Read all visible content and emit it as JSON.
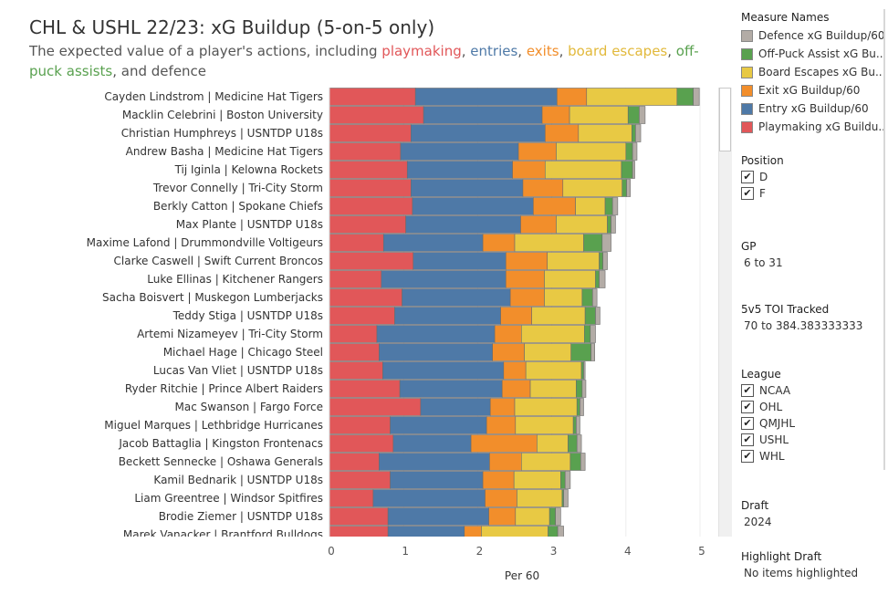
{
  "title": "CHL & USHL 22/23: xG Buildup (5-on-5 only)",
  "subtitle": {
    "part1": "The expected value of a player's actions, including ",
    "playmaking": "playmaking",
    "sep1": ", ",
    "entries": "entries",
    "sep2": ", ",
    "exits": "exits",
    "sep3": ", ",
    "board_escapes": "board escapes",
    "sep4": ", ",
    "off_puck": "off-puck",
    "assists": "assists",
    "end": ", and defence"
  },
  "colors": {
    "playmaking": "#e15759",
    "entry": "#4e79a7",
    "exit": "#f28e2b",
    "board": "#e8c944",
    "opa": "#59a14f",
    "defence": "#b3aca6"
  },
  "chart_data": {
    "type": "bar",
    "orientation": "horizontal",
    "stacked": true,
    "xlabel": "Per 60",
    "xlim": [
      0,
      5
    ],
    "xticks": [
      "0",
      "1",
      "2",
      "3",
      "4",
      "5"
    ],
    "grid": true,
    "categories": [
      "Cayden Lindstrom | Medicine Hat Tigers",
      "Macklin Celebrini | Boston University",
      "Christian Humphreys | USNTDP U18s",
      "Andrew Basha | Medicine Hat Tigers",
      "Tij Iginla | Kelowna Rockets",
      "Trevor Connelly | Tri-City Storm",
      "Berkly Catton | Spokane Chiefs",
      "Max Plante | USNTDP U18s",
      "Maxime Lafond | Drummondville Voltigeurs",
      "Clarke Caswell | Swift Current Broncos",
      "Luke Ellinas | Kitchener Rangers",
      "Sacha Boisvert | Muskegon Lumberjacks",
      "Teddy Stiga | USNTDP U18s",
      "Artemi Nizameyev | Tri-City Storm",
      "Michael Hage | Chicago Steel",
      "Lucas Van Vliet | USNTDP U18s",
      "Ryder Ritchie | Prince Albert Raiders",
      "Mac Swanson | Fargo Force",
      "Miguel Marques | Lethbridge Hurricanes",
      "Jacob Battaglia | Kingston Frontenacs",
      "Beckett Sennecke | Oshawa Generals",
      "Kamil Bednarik | USNTDP U18s",
      "Liam Greentree | Windsor Spitfires",
      "Brodie Ziemer | USNTDP U18s",
      "Marek Vanacker | Brantford Bulldogs"
    ],
    "series": [
      {
        "name": "Playmaking xG Buildup/60",
        "values": [
          1.16,
          1.27,
          1.1,
          0.96,
          1.05,
          1.1,
          1.12,
          1.03,
          0.73,
          1.13,
          0.7,
          0.98,
          0.88,
          0.64,
          0.67,
          0.72,
          0.95,
          1.23,
          0.82,
          0.86,
          0.67,
          0.82,
          0.59,
          0.79,
          0.79
        ]
      },
      {
        "name": "Entry xG Buildup/60",
        "values": [
          1.91,
          1.6,
          1.81,
          1.59,
          1.42,
          1.51,
          1.63,
          1.55,
          1.34,
          1.25,
          1.68,
          1.46,
          1.43,
          1.59,
          1.53,
          1.63,
          1.38,
          0.94,
          1.3,
          1.05,
          1.49,
          1.25,
          1.51,
          1.36,
          1.03
        ]
      },
      {
        "name": "Exit xG Buildup/60",
        "values": [
          0.4,
          0.37,
          0.45,
          0.51,
          0.44,
          0.54,
          0.57,
          0.48,
          0.43,
          0.56,
          0.52,
          0.46,
          0.42,
          0.36,
          0.43,
          0.3,
          0.38,
          0.33,
          0.39,
          0.89,
          0.43,
          0.42,
          0.43,
          0.36,
          0.23
        ]
      },
      {
        "name": "Board Escapes xG Buildup/60",
        "values": [
          1.22,
          0.79,
          0.72,
          0.94,
          1.03,
          0.8,
          0.4,
          0.69,
          0.93,
          0.7,
          0.69,
          0.51,
          0.72,
          0.85,
          0.63,
          0.75,
          0.62,
          0.84,
          0.78,
          0.42,
          0.66,
          0.63,
          0.61,
          0.46,
          0.9
        ]
      },
      {
        "name": "Off-Puck Assist xG Bu..",
        "values": [
          0.22,
          0.15,
          0.05,
          0.09,
          0.15,
          0.06,
          0.1,
          0.05,
          0.25,
          0.05,
          0.05,
          0.14,
          0.14,
          0.08,
          0.27,
          0.03,
          0.08,
          0.04,
          0.04,
          0.12,
          0.14,
          0.06,
          0.02,
          0.08,
          0.13
        ]
      },
      {
        "name": "Defence xG Buildup/60",
        "values": [
          0.08,
          0.08,
          0.07,
          0.06,
          0.03,
          0.05,
          0.07,
          0.06,
          0.12,
          0.06,
          0.08,
          0.06,
          0.06,
          0.07,
          0.05,
          0.02,
          0.05,
          0.05,
          0.05,
          0.06,
          0.06,
          0.07,
          0.06,
          0.07,
          0.08
        ]
      }
    ]
  },
  "sidebar": {
    "measure_names": {
      "title": "Measure Names",
      "items": [
        {
          "label": "Defence xG Buildup/60",
          "color": "#b3aca6"
        },
        {
          "label": "Off-Puck Assist xG Bu..",
          "color": "#59a14f"
        },
        {
          "label": "Board Escapes xG Bu..",
          "color": "#e8c944"
        },
        {
          "label": "Exit xG Buildup/60",
          "color": "#f28e2b"
        },
        {
          "label": "Entry xG Buildup/60",
          "color": "#4e79a7"
        },
        {
          "label": "Playmaking xG Buildu..",
          "color": "#e15759"
        }
      ]
    },
    "position": {
      "title": "Position",
      "options": [
        "D",
        "F"
      ]
    },
    "gp": {
      "title": "GP",
      "value": "6 to 31"
    },
    "toi": {
      "title": "5v5 TOI Tracked",
      "value": "70 to 384.383333333"
    },
    "league": {
      "title": "League",
      "options": [
        "NCAA",
        "OHL",
        "QMJHL",
        "USHL",
        "WHL"
      ]
    },
    "draft": {
      "title": "Draft",
      "value": "2024"
    },
    "highlight": {
      "title": "Highlight Draft",
      "value": "No items highlighted"
    },
    "check_mark": "✔"
  }
}
